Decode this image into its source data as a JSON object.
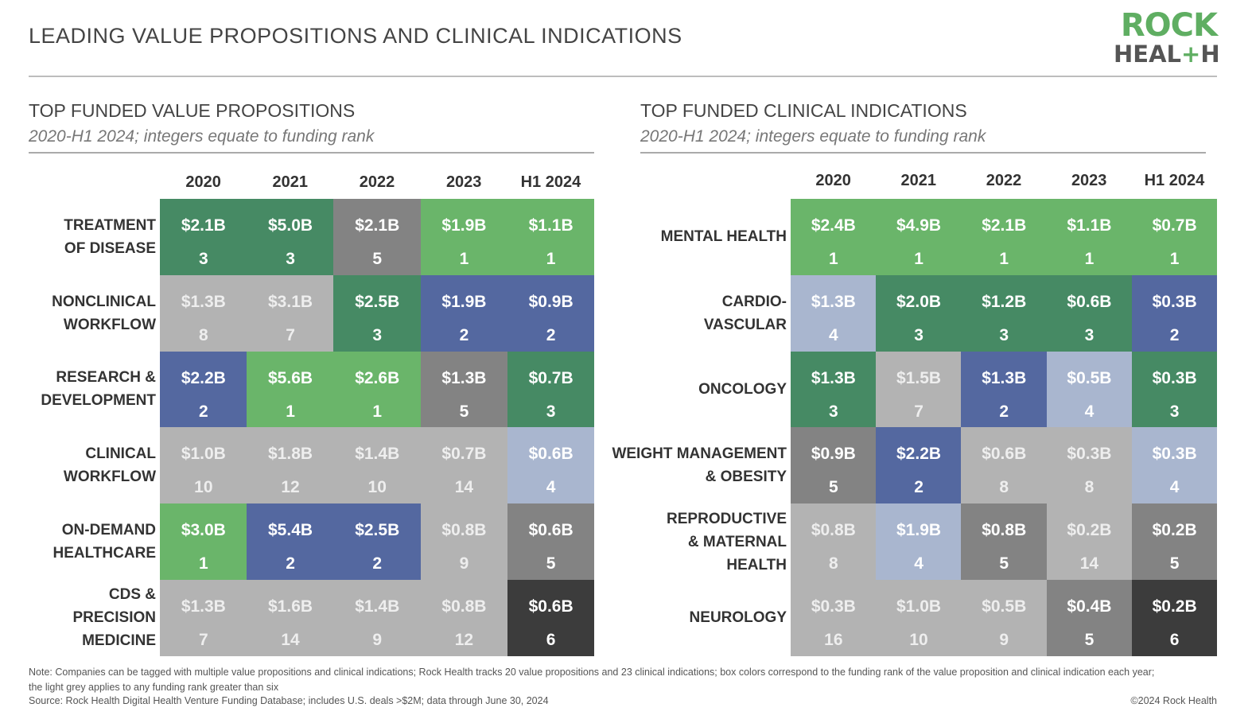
{
  "title": "LEADING VALUE PROPOSITIONS AND CLINICAL INDICATIONS",
  "logo": {
    "line1": "ROCK",
    "line2a": "HEAL",
    "line2plus": "+",
    "line2b": "H"
  },
  "footer": {
    "note": "Note: Companies can be tagged with multiple value propositions and clinical indications; Rock Health tracks 20 value propositions and 23 clinical indications; box colors correspond to the funding rank of the value proposition and clinical indication each year; the light grey applies to any funding rank greater than six",
    "source": "Source: Rock Health Digital Health Venture Funding Database; includes U.S. deals >$2M; data through June 30, 2024",
    "copyright": "©2024 Rock Health"
  },
  "rank_colors": {
    "1": "#6ab56a",
    "2": "#5468a0",
    "3": "#468a64",
    "4": "#a9b6cf",
    "5": "#838383",
    "6": "#3c3c3c",
    "other": "#b3b3b3"
  },
  "chart_data": [
    {
      "type": "table",
      "title": "TOP FUNDED VALUE PROPOSITIONS",
      "subtitle": "2020-H1 2024; integers equate to funding rank",
      "columns": [
        "2020",
        "2021",
        "2022",
        "2023",
        "H1 2024"
      ],
      "rows": [
        {
          "label": "TREATMENT OF DISEASE",
          "label_lines": [
            "TREATMENT",
            "OF DISEASE"
          ],
          "values": [
            "$2.1B",
            "$5.0B",
            "$2.1B",
            "$1.9B",
            "$1.1B"
          ],
          "ranks": [
            3,
            3,
            5,
            1,
            1
          ]
        },
        {
          "label": "NONCLINICAL WORKFLOW",
          "label_lines": [
            "NONCLINICAL",
            "WORKFLOW"
          ],
          "values": [
            "$1.3B",
            "$3.1B",
            "$2.5B",
            "$1.9B",
            "$0.9B"
          ],
          "ranks": [
            8,
            7,
            3,
            2,
            2
          ]
        },
        {
          "label": "RESEARCH & DEVELOPMENT",
          "label_lines": [
            "RESEARCH &",
            "DEVELOPMENT"
          ],
          "values": [
            "$2.2B",
            "$5.6B",
            "$2.6B",
            "$1.3B",
            "$0.7B"
          ],
          "ranks": [
            2,
            1,
            1,
            5,
            3
          ]
        },
        {
          "label": "CLINICAL WORKFLOW",
          "label_lines": [
            "CLINICAL",
            "WORKFLOW"
          ],
          "values": [
            "$1.0B",
            "$1.8B",
            "$1.4B",
            "$0.7B",
            "$0.6B"
          ],
          "ranks": [
            10,
            12,
            10,
            14,
            4
          ]
        },
        {
          "label": "ON-DEMAND HEALTHCARE",
          "label_lines": [
            "ON-DEMAND",
            "HEALTHCARE"
          ],
          "values": [
            "$3.0B",
            "$5.4B",
            "$2.5B",
            "$0.8B",
            "$0.6B"
          ],
          "ranks": [
            1,
            2,
            2,
            9,
            5
          ]
        },
        {
          "label": "CDS & PRECISION MEDICINE",
          "label_lines": [
            "CDS &",
            "PRECISION",
            "MEDICINE"
          ],
          "values": [
            "$1.3B",
            "$1.6B",
            "$1.4B",
            "$0.8B",
            "$0.6B"
          ],
          "ranks": [
            7,
            14,
            9,
            12,
            6
          ]
        }
      ]
    },
    {
      "type": "table",
      "title": "TOP FUNDED CLINICAL INDICATIONS",
      "subtitle": "2020-H1 2024; integers equate to funding rank",
      "columns": [
        "2020",
        "2021",
        "2022",
        "2023",
        "H1 2024"
      ],
      "rows": [
        {
          "label": "MENTAL HEALTH",
          "label_lines": [
            "MENTAL HEALTH"
          ],
          "values": [
            "$2.4B",
            "$4.9B",
            "$2.1B",
            "$1.1B",
            "$0.7B"
          ],
          "ranks": [
            1,
            1,
            1,
            1,
            1
          ]
        },
        {
          "label": "CARDIO-VASCULAR",
          "label_lines": [
            "CARDIO-",
            "VASCULAR"
          ],
          "values": [
            "$1.3B",
            "$2.0B",
            "$1.2B",
            "$0.6B",
            "$0.3B"
          ],
          "ranks": [
            4,
            3,
            3,
            3,
            2
          ]
        },
        {
          "label": "ONCOLOGY",
          "label_lines": [
            "ONCOLOGY"
          ],
          "values": [
            "$1.3B",
            "$1.5B",
            "$1.3B",
            "$0.5B",
            "$0.3B"
          ],
          "ranks": [
            3,
            7,
            2,
            4,
            3
          ]
        },
        {
          "label": "WEIGHT MANAGEMENT & OBESITY",
          "label_lines": [
            "WEIGHT MANAGEMENT",
            "& OBESITY"
          ],
          "values": [
            "$0.9B",
            "$2.2B",
            "$0.6B",
            "$0.3B",
            "$0.3B"
          ],
          "ranks": [
            5,
            2,
            8,
            8,
            4
          ]
        },
        {
          "label": "REPRODUCTIVE & MATERNAL HEALTH",
          "label_lines": [
            "REPRODUCTIVE",
            "& MATERNAL",
            "HEALTH"
          ],
          "values": [
            "$0.8B",
            "$1.9B",
            "$0.8B",
            "$0.2B",
            "$0.2B"
          ],
          "ranks": [
            8,
            4,
            5,
            14,
            5
          ]
        },
        {
          "label": "NEUROLOGY",
          "label_lines": [
            "NEUROLOGY"
          ],
          "values": [
            "$0.3B",
            "$1.0B",
            "$0.5B",
            "$0.4B",
            "$0.2B"
          ],
          "ranks": [
            16,
            10,
            9,
            5,
            6
          ]
        }
      ]
    }
  ]
}
